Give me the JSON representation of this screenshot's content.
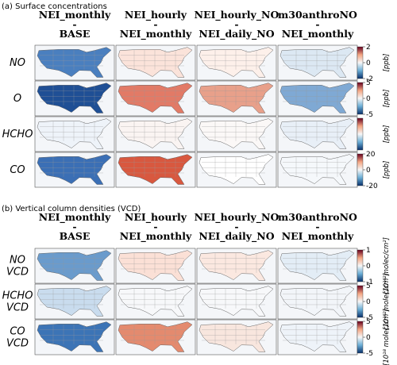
{
  "sections": [
    {
      "title": "(a) Surface concentrations",
      "columns": [
        [
          "NEI_monthly",
          "-",
          "BASE"
        ],
        [
          "NEI_hourly",
          "-",
          "NEI_monthly"
        ],
        [
          "NEI_hourly_NO",
          "-",
          "NEI_daily_NO"
        ],
        [
          "m30anthroNO",
          "-",
          "NEI_monthly"
        ]
      ],
      "rows": [
        {
          "label": [
            {
              "text": "NO",
              "sub": "2"
            }
          ],
          "unit": "[ppb]",
          "range": [
            -2,
            2
          ],
          "ticks": [
            -2,
            0,
            2
          ]
        },
        {
          "label": [
            {
              "text": "O",
              "sub": "3"
            }
          ],
          "unit": "[ppb]",
          "range": [
            -5,
            5
          ],
          "ticks": [
            -5,
            0,
            5
          ]
        },
        {
          "label": [
            {
              "text": "HCHO"
            }
          ],
          "unit": "[ppb]"
        },
        {
          "label": [
            {
              "text": "CO"
            }
          ],
          "unit": "[ppb]",
          "range": [
            -20,
            20
          ],
          "ticks": [
            -20,
            0,
            20
          ]
        }
      ]
    },
    {
      "title": "(b) Vertical column densities (VCD)",
      "columns": [
        [
          "NEI_monthly",
          "-",
          "BASE"
        ],
        [
          "NEI_hourly",
          "-",
          "NEI_monthly"
        ],
        [
          "NEI_hourly_NO",
          "-",
          "NEI_daily_NO"
        ],
        [
          "m30anthroNO",
          "-",
          "NEI_monthly"
        ]
      ],
      "rows": [
        {
          "label": [
            {
              "text": "NO",
              "sub": "2"
            },
            {
              "text": "VCD",
              "sub": "Trop"
            }
          ],
          "unit": "[10¹⁵ molec/cm²]",
          "range": [
            -1,
            1
          ],
          "ticks": [
            -1,
            0,
            1
          ]
        },
        {
          "label": [
            {
              "text": "HCHO"
            },
            {
              "text": "VCD",
              "sub": "Trop"
            }
          ],
          "unit": "[10¹⁵ molec/cm²]",
          "range": [
            -5,
            5
          ],
          "ticks": [
            -5,
            0,
            5
          ]
        },
        {
          "label": [
            {
              "text": "CO"
            },
            {
              "text": "VCD",
              "sub": "Total"
            }
          ],
          "unit": "[10¹⁸ molec/cm²]",
          "range": [
            -5,
            5
          ],
          "ticks": [
            -5,
            0,
            5
          ]
        }
      ]
    }
  ]
}
